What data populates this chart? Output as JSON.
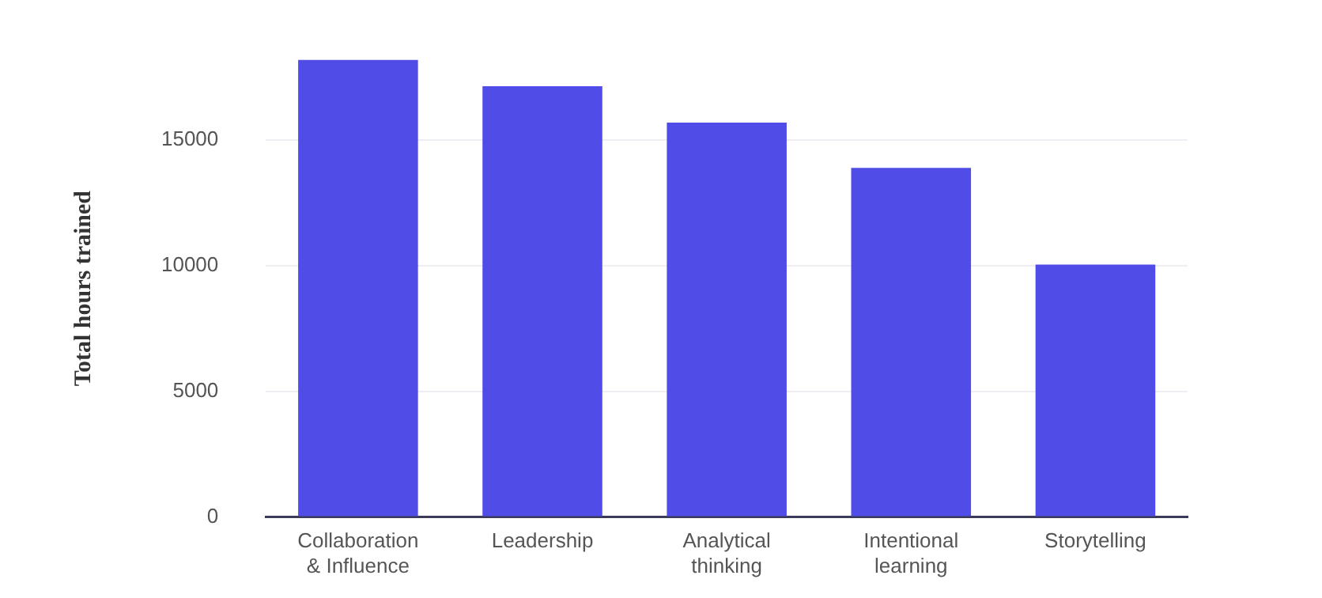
{
  "chart_data": {
    "type": "bar",
    "ylabel": "Total hours trained",
    "categories": [
      "Collaboration & Influence",
      "Leadership",
      "Analytical thinking",
      "Intentional learning",
      "Storytelling"
    ],
    "values": [
      18200,
      17150,
      15700,
      13900,
      10050
    ],
    "color": "#4f4ce8",
    "ylim": [
      0,
      18200
    ],
    "yticks": [
      0,
      5000,
      10000,
      15000
    ],
    "grid": "y"
  }
}
